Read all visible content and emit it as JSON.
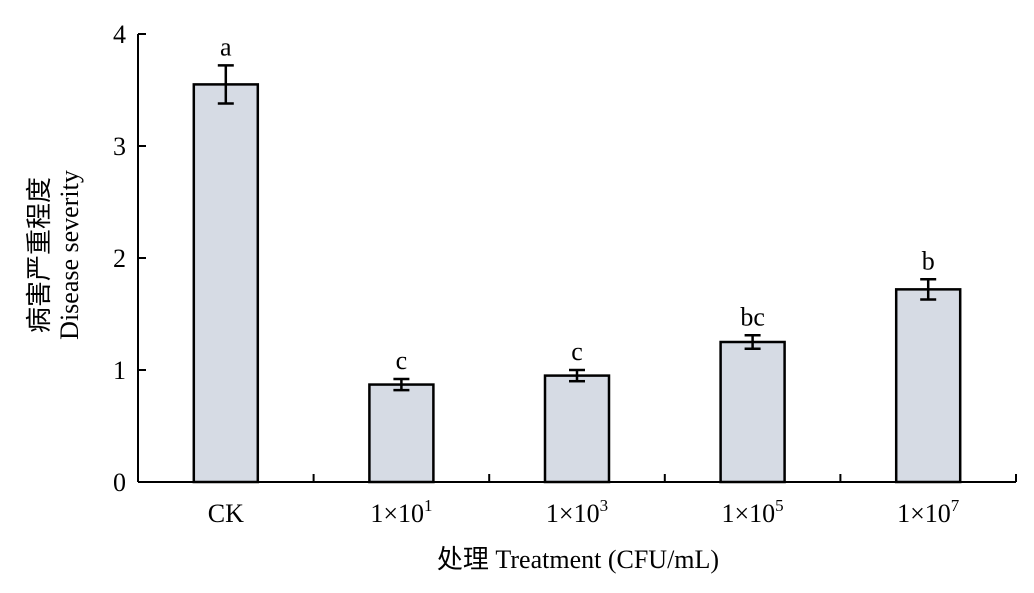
{
  "chart_data": {
    "type": "bar",
    "categories": [
      "CK",
      "1×10",
      "1×10",
      "1×10",
      "1×10"
    ],
    "category_superscripts": [
      "",
      "1",
      "3",
      "5",
      "7"
    ],
    "values": [
      3.55,
      0.87,
      0.95,
      1.25,
      1.72
    ],
    "errors": [
      0.17,
      0.05,
      0.05,
      0.06,
      0.09
    ],
    "significance_letters": [
      "a",
      "c",
      "c",
      "bc",
      "b"
    ],
    "xlabel": "处理 Treatment (CFU/mL)",
    "ylabel_cn": "病害严重程度",
    "ylabel_en": "Disease severity",
    "ylim": [
      0,
      4
    ],
    "yticks": [
      "0",
      "1",
      "2",
      "3",
      "4"
    ],
    "bar_color": "#d6dbe4",
    "edge_color": "#000000",
    "grid": false,
    "legend": "none"
  }
}
